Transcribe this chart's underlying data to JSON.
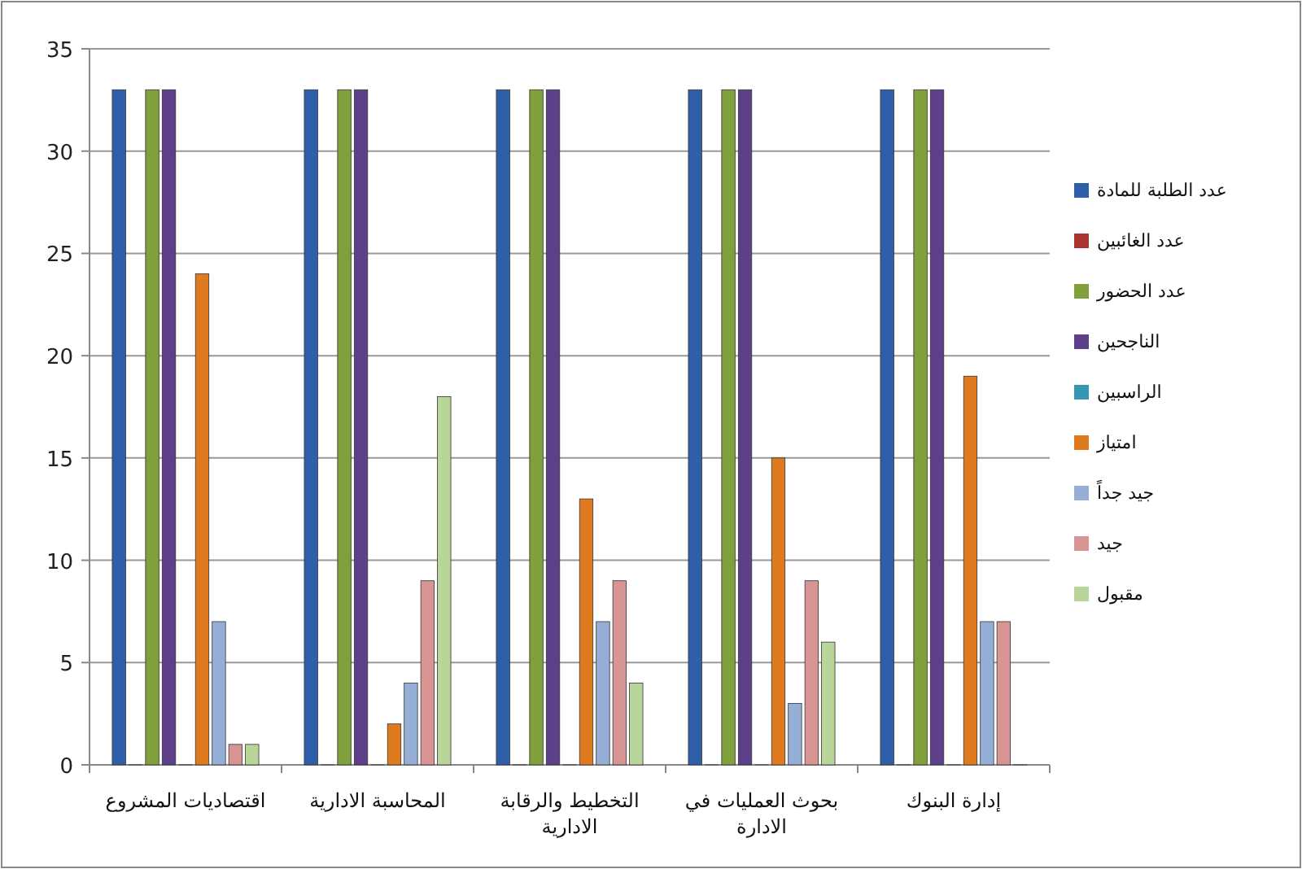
{
  "chart_data": {
    "type": "bar",
    "categories": [
      "اقتصاديات المشروع",
      "المحاسبة الادارية",
      "التخطيط والرقابة الادارية",
      "بحوث العمليات في الادارة",
      "إدارة البنوك"
    ],
    "series": [
      {
        "name": "عدد الطلبة للمادة",
        "color": "#2f5fa8",
        "values": [
          33,
          33,
          33,
          33,
          33
        ]
      },
      {
        "name": "عدد الغائبين",
        "color": "#a8332f",
        "values": [
          0,
          0,
          0,
          0,
          0
        ]
      },
      {
        "name": "عدد الحضور",
        "color": "#7fa03a",
        "values": [
          33,
          33,
          33,
          33,
          33
        ]
      },
      {
        "name": "الناجحين",
        "color": "#5e3f8a",
        "values": [
          33,
          33,
          33,
          33,
          33
        ]
      },
      {
        "name": "الراسبين",
        "color": "#3597b4",
        "values": [
          0,
          0,
          0,
          0,
          0
        ]
      },
      {
        "name": "امتياز",
        "color": "#e07a1f",
        "values": [
          24,
          2,
          13,
          15,
          19
        ]
      },
      {
        "name": "جيد جداً",
        "color": "#94aed6",
        "values": [
          7,
          4,
          7,
          3,
          7
        ]
      },
      {
        "name": "جيد",
        "color": "#d99494",
        "values": [
          1,
          9,
          9,
          9,
          7
        ]
      },
      {
        "name": "مقبول",
        "color": "#b8d59a",
        "values": [
          1,
          18,
          4,
          6,
          0
        ]
      }
    ],
    "ylim": [
      0,
      35
    ],
    "yticks": [
      0,
      5,
      10,
      15,
      20,
      25,
      30,
      35
    ],
    "grid": "y",
    "legend": "right"
  }
}
